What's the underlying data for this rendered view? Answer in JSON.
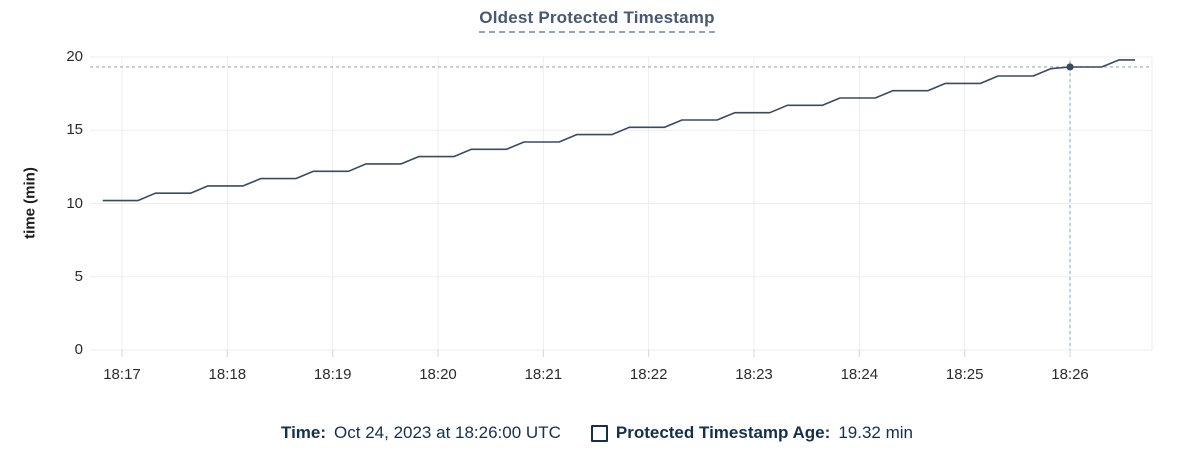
{
  "title": "Oldest Protected Timestamp",
  "chart_data": {
    "type": "line",
    "title": "Oldest Protected Timestamp",
    "xlabel": "",
    "ylabel": "time (min)",
    "ylim": [
      0,
      20
    ],
    "yticks": [
      0,
      5,
      10,
      15,
      20
    ],
    "x_unit": "seconds after 18:17:00",
    "xticks": [
      {
        "t": 0,
        "label": "18:17"
      },
      {
        "t": 60,
        "label": "18:18"
      },
      {
        "t": 120,
        "label": "18:19"
      },
      {
        "t": 180,
        "label": "18:20"
      },
      {
        "t": 240,
        "label": "18:21"
      },
      {
        "t": 300,
        "label": "18:22"
      },
      {
        "t": 360,
        "label": "18:23"
      },
      {
        "t": 420,
        "label": "18:24"
      },
      {
        "t": 480,
        "label": "18:25"
      },
      {
        "t": 540,
        "label": "18:26"
      }
    ],
    "grid": true,
    "series": [
      {
        "name": "Protected Timestamp Age",
        "points": [
          [
            -11,
            10.2
          ],
          [
            9,
            10.2
          ],
          [
            19,
            10.7
          ],
          [
            39,
            10.7
          ],
          [
            49,
            11.2
          ],
          [
            69,
            11.2
          ],
          [
            79,
            11.7
          ],
          [
            99,
            11.7
          ],
          [
            109,
            12.2
          ],
          [
            129,
            12.2
          ],
          [
            139,
            12.7
          ],
          [
            159,
            12.7
          ],
          [
            169,
            13.2
          ],
          [
            189,
            13.2
          ],
          [
            199,
            13.7
          ],
          [
            219,
            13.7
          ],
          [
            229,
            14.2
          ],
          [
            249,
            14.2
          ],
          [
            259,
            14.7
          ],
          [
            279,
            14.7
          ],
          [
            289,
            15.2
          ],
          [
            309,
            15.2
          ],
          [
            319,
            15.7
          ],
          [
            339,
            15.7
          ],
          [
            349,
            16.2
          ],
          [
            369,
            16.2
          ],
          [
            379,
            16.7
          ],
          [
            399,
            16.7
          ],
          [
            409,
            17.2
          ],
          [
            429,
            17.2
          ],
          [
            439,
            17.7
          ],
          [
            459,
            17.7
          ],
          [
            469,
            18.2
          ],
          [
            489,
            18.2
          ],
          [
            499,
            18.7
          ],
          [
            519,
            18.7
          ],
          [
            529,
            19.2
          ],
          [
            540,
            19.32
          ],
          [
            558,
            19.32
          ],
          [
            568,
            19.8
          ],
          [
            577,
            19.8
          ]
        ]
      }
    ],
    "marker": {
      "t": 540,
      "v": 19.32,
      "time": "18:26:00",
      "value_label": "19.32 min"
    }
  },
  "tooltip": {
    "time_label": "Time:",
    "time_value": "Oct 24, 2023 at 18:26:00 UTC",
    "series_label": "Protected Timestamp Age:",
    "series_value": "19.32 min"
  },
  "icons": {
    "legend_marker": "legend-checkbox-square"
  },
  "colors": {
    "line": "#3b4a63",
    "marker": "#3b4a63",
    "grid": "#ededed",
    "tick": "#d6d6d6",
    "crosshair": "#a6bbca",
    "title": "#475872",
    "text_navy": "#15304e",
    "axis_text": "#2b2b2b"
  }
}
